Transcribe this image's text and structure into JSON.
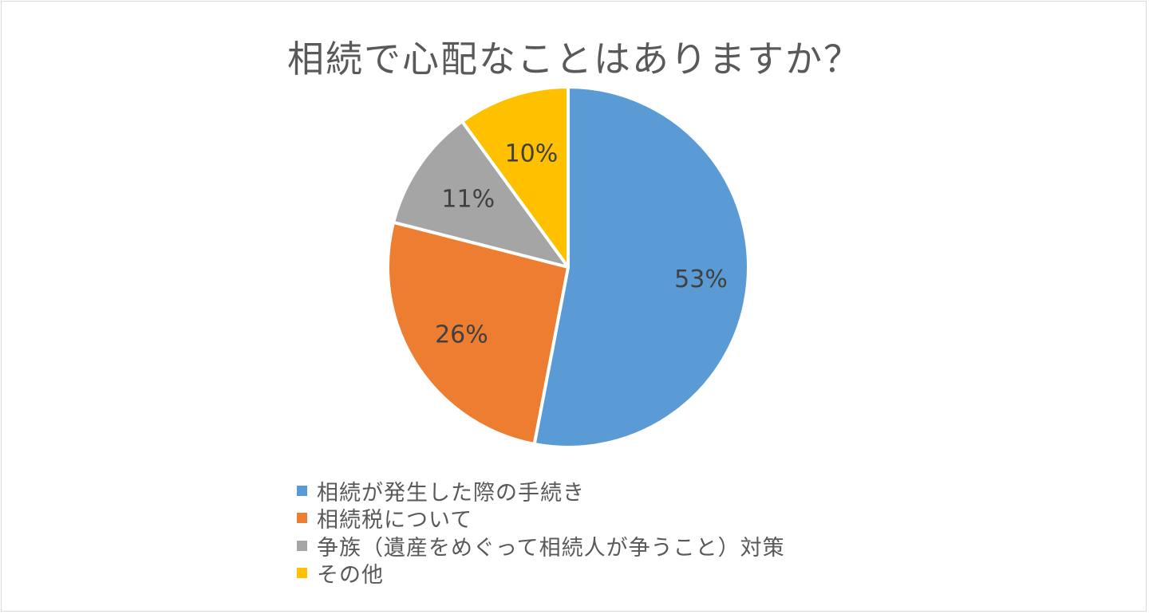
{
  "chart_data": {
    "type": "pie",
    "title": "相続で心配なことはありますか？",
    "categories": [
      "相続が発生した際の手続き",
      "相続税について",
      "争族（遺産をめぐって相続人が争うこと）対策",
      "その他"
    ],
    "values": [
      53,
      26,
      11,
      10
    ],
    "labels": [
      "53%",
      "26%",
      "11%",
      "10%"
    ],
    "colors": [
      "#5b9bd5",
      "#ed7d31",
      "#a5a5a5",
      "#ffc000"
    ],
    "legend_position": "bottom"
  }
}
